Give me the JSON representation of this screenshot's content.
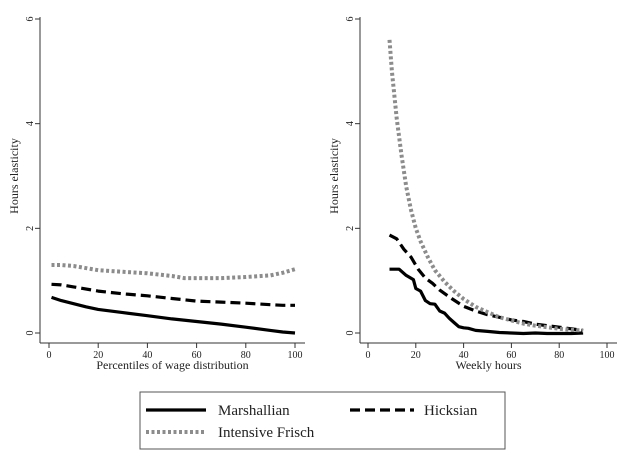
{
  "chart_data": [
    {
      "type": "line",
      "xlabel": "Percentiles of wage distribution",
      "ylabel": "Hours elasticity",
      "xlim": [
        0,
        100
      ],
      "ylim": [
        0,
        6
      ],
      "xticks": [
        "0",
        "20",
        "40",
        "60",
        "80",
        "100"
      ],
      "yticks": [
        "0",
        "2",
        "4",
        "6"
      ],
      "grid": false,
      "series": [
        {
          "name": "Marshallian",
          "x": [
            1,
            5,
            10,
            15,
            20,
            30,
            40,
            50,
            60,
            70,
            80,
            90,
            95,
            100
          ],
          "y": [
            0.68,
            0.62,
            0.56,
            0.5,
            0.45,
            0.39,
            0.33,
            0.27,
            0.22,
            0.17,
            0.11,
            0.05,
            0.02,
            0.0
          ]
        },
        {
          "name": "Hicksian",
          "x": [
            1,
            5,
            10,
            20,
            30,
            40,
            50,
            60,
            70,
            80,
            90,
            95,
            100
          ],
          "y": [
            0.93,
            0.92,
            0.88,
            0.8,
            0.75,
            0.71,
            0.66,
            0.61,
            0.59,
            0.57,
            0.54,
            0.53,
            0.53
          ]
        },
        {
          "name": "Intensive Frisch",
          "x": [
            1,
            5,
            10,
            20,
            30,
            40,
            50,
            55,
            60,
            70,
            80,
            90,
            95,
            100
          ],
          "y": [
            1.3,
            1.3,
            1.28,
            1.2,
            1.17,
            1.14,
            1.09,
            1.05,
            1.05,
            1.05,
            1.07,
            1.1,
            1.15,
            1.22
          ]
        }
      ]
    },
    {
      "type": "line",
      "xlabel": "Weekly hours",
      "ylabel": "Hours elasticity",
      "xlim": [
        0,
        100
      ],
      "ylim": [
        0,
        6
      ],
      "xticks": [
        "0",
        "20",
        "40",
        "60",
        "80",
        "100"
      ],
      "yticks": [
        "0",
        "2",
        "4",
        "6"
      ],
      "grid": false,
      "series": [
        {
          "name": "Marshallian",
          "x": [
            9,
            13,
            16,
            19,
            20,
            22,
            24,
            26,
            28,
            30,
            32,
            34,
            36,
            38,
            40,
            42,
            45,
            50,
            55,
            60,
            65,
            70,
            75,
            80,
            85,
            90
          ],
          "y": [
            1.22,
            1.22,
            1.1,
            1.02,
            0.85,
            0.8,
            0.62,
            0.56,
            0.55,
            0.42,
            0.38,
            0.28,
            0.2,
            0.12,
            0.1,
            0.09,
            0.05,
            0.03,
            0.01,
            0.0,
            -0.01,
            0.0,
            -0.01,
            -0.01,
            -0.01,
            0.0
          ]
        },
        {
          "name": "Hicksian",
          "x": [
            9,
            12,
            15,
            18,
            21,
            24,
            27,
            30,
            35,
            40,
            45,
            50,
            55,
            60,
            65,
            70,
            75,
            80,
            85,
            90
          ],
          "y": [
            1.87,
            1.8,
            1.6,
            1.45,
            1.22,
            1.05,
            0.95,
            0.82,
            0.66,
            0.51,
            0.42,
            0.35,
            0.3,
            0.25,
            0.22,
            0.17,
            0.14,
            0.11,
            0.08,
            0.05
          ]
        },
        {
          "name": "Intensive Frisch",
          "x": [
            9,
            10,
            12,
            14,
            16,
            18,
            20,
            22,
            25,
            28,
            32,
            36,
            40,
            45,
            50,
            55,
            60,
            65,
            70,
            75,
            80,
            85,
            90
          ],
          "y": [
            5.6,
            5.0,
            4.1,
            3.4,
            2.8,
            2.35,
            2.0,
            1.75,
            1.45,
            1.2,
            0.98,
            0.8,
            0.65,
            0.5,
            0.4,
            0.3,
            0.24,
            0.18,
            0.14,
            0.11,
            0.08,
            0.06,
            0.05
          ]
        }
      ]
    }
  ],
  "legend": {
    "placement": "bottom",
    "entries": [
      {
        "name": "Marshallian",
        "style": "solid"
      },
      {
        "name": "Hicksian",
        "style": "dash"
      },
      {
        "name": "Intensive Frisch",
        "style": "dot"
      }
    ]
  },
  "colors": {
    "Marshallian": "#000000",
    "Hicksian": "#000000",
    "Intensive Frisch": "#8c8c8c",
    "axis": "#333333"
  }
}
